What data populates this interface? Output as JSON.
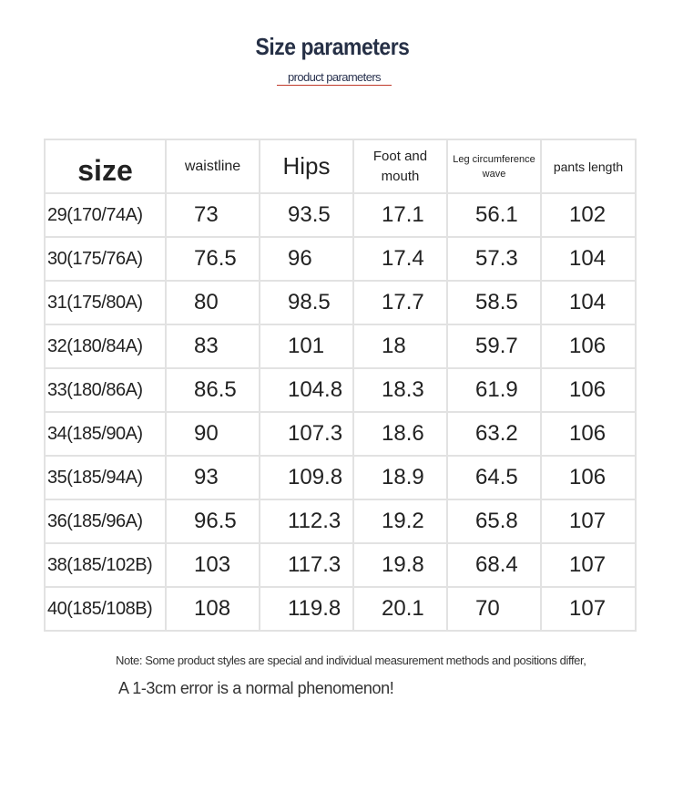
{
  "header": {
    "title": "Size parameters",
    "subtitle": "product parameters"
  },
  "table": {
    "columns": [
      "size",
      "waistline",
      "Hips",
      "Foot and mouth",
      "Leg circumference wave",
      "pants length"
    ],
    "rows": [
      [
        "29(170/74A)",
        "73",
        "93.5",
        "17.1",
        "56.1",
        "102"
      ],
      [
        "30(175/76A)",
        "76.5",
        "96",
        "17.4",
        "57.3",
        "104"
      ],
      [
        "31(175/80A)",
        "80",
        "98.5",
        "17.7",
        "58.5",
        "104"
      ],
      [
        "32(180/84A)",
        "83",
        "101",
        "18",
        "59.7",
        "106"
      ],
      [
        "33(180/86A)",
        "86.5",
        "104.8",
        "18.3",
        "61.9",
        "106"
      ],
      [
        "34(185/90A)",
        "90",
        "107.3",
        "18.6",
        "63.2",
        "106"
      ],
      [
        "35(185/94A)",
        "93",
        "109.8",
        "18.9",
        "64.5",
        "106"
      ],
      [
        "36(185/96A)",
        "96.5",
        "112.3",
        "19.2",
        "65.8",
        "107"
      ],
      [
        "38(185/102B)",
        "103",
        "117.3",
        "19.8",
        "68.4",
        "107"
      ],
      [
        "40(185/108B)",
        "108",
        "119.8",
        "20.1",
        "70",
        "107"
      ]
    ]
  },
  "notes": [
    "Note: Some product styles are special and individual measurement methods and positions differ,",
    "A 1-3cm error is a normal phenomenon!"
  ]
}
